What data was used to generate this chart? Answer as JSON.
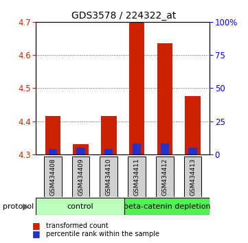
{
  "title": "GDS3578 / 224322_at",
  "samples": [
    "GSM434408",
    "GSM434409",
    "GSM434410",
    "GSM434411",
    "GSM434412",
    "GSM434413"
  ],
  "transformed_counts": [
    4.415,
    4.33,
    4.415,
    4.7,
    4.635,
    4.475
  ],
  "percentile_ranks": [
    4,
    5,
    4,
    8,
    8,
    5
  ],
  "ylim_left": [
    4.3,
    4.7
  ],
  "ylim_right": [
    0,
    100
  ],
  "yticks_left": [
    4.3,
    4.4,
    4.5,
    4.6,
    4.7
  ],
  "yticks_right": [
    0,
    25,
    50,
    75,
    100
  ],
  "bar_color_red": "#cc2200",
  "bar_color_blue": "#2233cc",
  "bar_width": 0.55,
  "base_value": 4.3,
  "control_label": "control",
  "treatment_label": "beta-catenin depletion",
  "protocol_label": "protocol",
  "legend_red": "transformed count",
  "legend_blue": "percentile rank within the sample",
  "bg_color": "#ffffff",
  "sample_box_color": "#d0d0d0",
  "control_box_color": "#bbffbb",
  "treatment_box_color": "#55ee55",
  "title_fontsize": 10,
  "tick_fontsize": 8.5
}
